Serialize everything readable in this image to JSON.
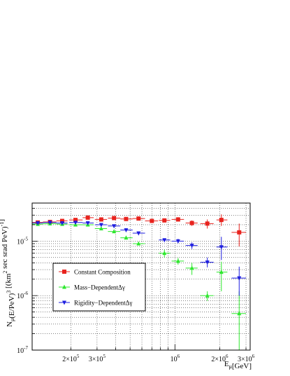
{
  "chart_data": {
    "type": "scatter",
    "title": "",
    "xlabel": "E_μ[GeV]",
    "ylabel": "N_μ(E/PeV)^3 [(km^2 sec srad PeV)^-1]",
    "xscale": "log",
    "yscale": "log",
    "xlim": [
      110000,
      3200000
    ],
    "ylim": [
      1e-07,
      5e-05
    ],
    "grid": true,
    "legend_position": "center-left",
    "x_tick_labels": [
      {
        "value": 200000,
        "base": "2×10",
        "exp": "5"
      },
      {
        "value": 300000,
        "base": "3×10",
        "exp": "5"
      },
      {
        "value": 1000000,
        "base": "10",
        "exp": "6"
      },
      {
        "value": 2000000,
        "base": "2×10",
        "exp": "6"
      },
      {
        "value": 3000000,
        "base": "3×10",
        "exp": "6"
      }
    ],
    "y_tick_labels": [
      {
        "value": 1e-07,
        "base": "10",
        "exp": "-7"
      },
      {
        "value": 1e-06,
        "base": "10",
        "exp": "-6"
      },
      {
        "value": 1e-05,
        "base": "10",
        "exp": "-5"
      }
    ],
    "series": [
      {
        "name": "Constant Composition",
        "color": "#e8231e",
        "marker": "square",
        "points": [
          {
            "x": 120000,
            "y": 2.2e-05,
            "xl": 110000,
            "xh": 130000,
            "yl": 2.15e-05,
            "yh": 2.25e-05
          },
          {
            "x": 145000,
            "y": 2.25e-05,
            "xl": 130000,
            "xh": 160000,
            "yl": 2.2e-05,
            "yh": 2.3e-05
          },
          {
            "x": 175000,
            "y": 2.35e-05,
            "xl": 160000,
            "xh": 190000,
            "yl": 2.3e-05,
            "yh": 2.4e-05
          },
          {
            "x": 215000,
            "y": 2.45e-05,
            "xl": 195000,
            "xh": 240000,
            "yl": 2.4e-05,
            "yh": 2.5e-05
          },
          {
            "x": 260000,
            "y": 2.7e-05,
            "xl": 240000,
            "xh": 285000,
            "yl": 2.65e-05,
            "yh": 2.75e-05
          },
          {
            "x": 320000,
            "y": 2.5e-05,
            "xl": 290000,
            "xh": 350000,
            "yl": 2.45e-05,
            "yh": 2.55e-05
          },
          {
            "x": 390000,
            "y": 2.65e-05,
            "xl": 355000,
            "xh": 430000,
            "yl": 2.6e-05,
            "yh": 2.7e-05
          },
          {
            "x": 470000,
            "y": 2.55e-05,
            "xl": 430000,
            "xh": 520000,
            "yl": 2.5e-05,
            "yh": 2.6e-05
          },
          {
            "x": 570000,
            "y": 2.6e-05,
            "xl": 520000,
            "xh": 630000,
            "yl": 2.55e-05,
            "yh": 2.65e-05
          },
          {
            "x": 700000,
            "y": 2.35e-05,
            "xl": 630000,
            "xh": 770000,
            "yl": 2.25e-05,
            "yh": 2.45e-05
          },
          {
            "x": 850000,
            "y": 2.4e-05,
            "xl": 780000,
            "xh": 930000,
            "yl": 2.25e-05,
            "yh": 2.55e-05
          },
          {
            "x": 1050000,
            "y": 2.5e-05,
            "xl": 950000,
            "xh": 1150000,
            "yl": 2.3e-05,
            "yh": 2.75e-05
          },
          {
            "x": 1300000,
            "y": 2.15e-05,
            "xl": 1180000,
            "xh": 1420000,
            "yl": 1.9e-05,
            "yh": 2.4e-05
          },
          {
            "x": 1650000,
            "y": 2.1e-05,
            "xl": 1480000,
            "xh": 1820000,
            "yl": 1.7e-05,
            "yh": 2.5e-05
          },
          {
            "x": 2050000,
            "y": 2.45e-05,
            "xl": 1900000,
            "xh": 2250000,
            "yl": 1.9e-05,
            "yh": 3.1e-05
          },
          {
            "x": 2700000,
            "y": 1.45e-05,
            "xl": 2400000,
            "xh": 3000000,
            "yl": 8e-06,
            "yh": 2.1e-05
          }
        ]
      },
      {
        "name": "Mass−DependentΔγ",
        "color": "#2ee82e",
        "marker": "triangle-up",
        "points": [
          {
            "x": 120000,
            "y": 2.05e-05,
            "xl": 110000,
            "xh": 130000,
            "yl": 2e-05,
            "yh": 2.1e-05
          },
          {
            "x": 145000,
            "y": 2.1e-05,
            "xl": 130000,
            "xh": 160000,
            "yl": 2.05e-05,
            "yh": 2.15e-05
          },
          {
            "x": 175000,
            "y": 2.05e-05,
            "xl": 160000,
            "xh": 190000,
            "yl": 2e-05,
            "yh": 2.1e-05
          },
          {
            "x": 215000,
            "y": 2e-05,
            "xl": 195000,
            "xh": 240000,
            "yl": 1.95e-05,
            "yh": 2.05e-05
          },
          {
            "x": 260000,
            "y": 2e-05,
            "xl": 240000,
            "xh": 285000,
            "yl": 1.95e-05,
            "yh": 2.05e-05
          },
          {
            "x": 320000,
            "y": 1.7e-05,
            "xl": 290000,
            "xh": 350000,
            "yl": 1.65e-05,
            "yh": 1.75e-05
          },
          {
            "x": 390000,
            "y": 1.5e-05,
            "xl": 355000,
            "xh": 430000,
            "yl": 1.45e-05,
            "yh": 1.55e-05
          },
          {
            "x": 470000,
            "y": 1.15e-05,
            "xl": 430000,
            "xh": 520000,
            "yl": 1.1e-05,
            "yh": 1.2e-05
          },
          {
            "x": 570000,
            "y": 9e-06,
            "xl": 520000,
            "xh": 630000,
            "yl": 8.5e-06,
            "yh": 9.5e-06
          },
          {
            "x": 850000,
            "y": 6e-06,
            "xl": 780000,
            "xh": 930000,
            "yl": 5e-06,
            "yh": 7e-06
          },
          {
            "x": 1050000,
            "y": 4.3e-06,
            "xl": 950000,
            "xh": 1150000,
            "yl": 3.7e-06,
            "yh": 4.9e-06
          },
          {
            "x": 1300000,
            "y": 3.2e-06,
            "xl": 1180000,
            "xh": 1420000,
            "yl": 2.4e-06,
            "yh": 4e-06
          },
          {
            "x": 1650000,
            "y": 1e-06,
            "xl": 1480000,
            "xh": 1820000,
            "yl": 8e-07,
            "yh": 1.2e-06
          },
          {
            "x": 2050000,
            "y": 2.7e-06,
            "xl": 1900000,
            "xh": 2250000,
            "yl": 1.2e-06,
            "yh": 4.2e-06
          },
          {
            "x": 2700000,
            "y": 4.7e-07,
            "xl": 2400000,
            "xh": 3000000,
            "yl": 1e-07,
            "yh": 1.2e-06
          }
        ]
      },
      {
        "name": "Rigidity−DependentΔγ",
        "color": "#1f1fe0",
        "marker": "triangle-down",
        "points": [
          {
            "x": 120000,
            "y": 2.15e-05,
            "xl": 110000,
            "xh": 130000,
            "yl": 2.1e-05,
            "yh": 2.2e-05
          },
          {
            "x": 145000,
            "y": 2.2e-05,
            "xl": 130000,
            "xh": 160000,
            "yl": 2.15e-05,
            "yh": 2.25e-05
          },
          {
            "x": 175000,
            "y": 2.15e-05,
            "xl": 160000,
            "xh": 190000,
            "yl": 2.1e-05,
            "yh": 2.2e-05
          },
          {
            "x": 215000,
            "y": 2.2e-05,
            "xl": 195000,
            "xh": 240000,
            "yl": 2.15e-05,
            "yh": 2.25e-05
          },
          {
            "x": 260000,
            "y": 2.15e-05,
            "xl": 240000,
            "xh": 285000,
            "yl": 2.1e-05,
            "yh": 2.2e-05
          },
          {
            "x": 320000,
            "y": 2e-05,
            "xl": 290000,
            "xh": 350000,
            "yl": 1.95e-05,
            "yh": 2.05e-05
          },
          {
            "x": 390000,
            "y": 1.9e-05,
            "xl": 355000,
            "xh": 430000,
            "yl": 1.85e-05,
            "yh": 1.95e-05
          },
          {
            "x": 470000,
            "y": 1.6e-05,
            "xl": 430000,
            "xh": 520000,
            "yl": 1.55e-05,
            "yh": 1.65e-05
          },
          {
            "x": 570000,
            "y": 1.4e-05,
            "xl": 520000,
            "xh": 630000,
            "yl": 1.35e-05,
            "yh": 1.45e-05
          },
          {
            "x": 850000,
            "y": 1.05e-05,
            "xl": 780000,
            "xh": 930000,
            "yl": 9.8e-06,
            "yh": 1.12e-05
          },
          {
            "x": 1050000,
            "y": 1e-05,
            "xl": 950000,
            "xh": 1150000,
            "yl": 9.2e-06,
            "yh": 1.1e-05
          },
          {
            "x": 1300000,
            "y": 8.3e-06,
            "xl": 1180000,
            "xh": 1420000,
            "yl": 7.2e-06,
            "yh": 9.5e-06
          },
          {
            "x": 1650000,
            "y": 4.1e-06,
            "xl": 1480000,
            "xh": 1820000,
            "yl": 3.3e-06,
            "yh": 5e-06
          },
          {
            "x": 2050000,
            "y": 7.8e-06,
            "xl": 1900000,
            "xh": 2250000,
            "yl": 4.5e-06,
            "yh": 1.2e-05
          },
          {
            "x": 2700000,
            "y": 2.1e-06,
            "xl": 2400000,
            "xh": 3000000,
            "yl": 1e-06,
            "yh": 3.4e-06
          }
        ]
      }
    ]
  }
}
